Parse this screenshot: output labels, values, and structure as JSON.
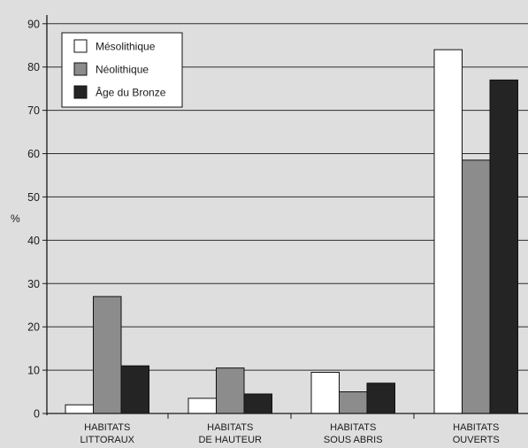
{
  "colors": {
    "background": "#dedede",
    "gridline": "#2e2e2e",
    "axis": "#1a1a1a",
    "text": "#1a1a1a"
  },
  "chart_data": {
    "type": "bar",
    "title": "",
    "xlabel": "",
    "ylabel": "%",
    "ylim": [
      0,
      92
    ],
    "yticks": [
      0,
      10,
      20,
      30,
      40,
      50,
      60,
      70,
      80,
      90
    ],
    "grid": true,
    "legend_position": "top-left",
    "categories": [
      [
        "HABITATS",
        "LITTORAUX"
      ],
      [
        "HABITATS",
        "DE HAUTEUR"
      ],
      [
        "HABITATS",
        "SOUS ABRIS"
      ],
      [
        "HABITATS",
        "OUVERTS"
      ]
    ],
    "series": [
      {
        "name": "Mésolithique",
        "color": "#ffffff",
        "values": [
          2,
          3.5,
          9.5,
          84
        ]
      },
      {
        "name": "Néolithique",
        "color": "#8c8c8c",
        "values": [
          27,
          10.5,
          5,
          58.5
        ]
      },
      {
        "name": "Âge du Bronze",
        "color": "#242424",
        "values": [
          11,
          4.5,
          7,
          77
        ]
      }
    ]
  }
}
